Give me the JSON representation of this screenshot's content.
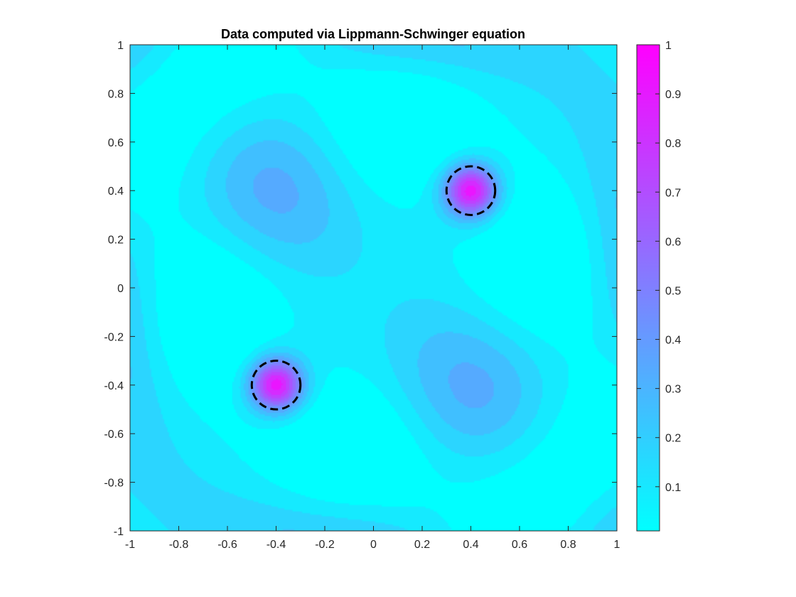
{
  "chart_data": {
    "type": "heatmap",
    "title": "Data computed via Lippmann-Schwinger equation",
    "xlabel": "",
    "ylabel": "",
    "xlim": [
      -1,
      1
    ],
    "ylim": [
      -1,
      1
    ],
    "x_ticks": [
      -1,
      -0.8,
      -0.6,
      -0.4,
      -0.2,
      0,
      0.2,
      0.4,
      0.6,
      0.8,
      1
    ],
    "y_ticks": [
      1,
      0.8,
      0.6,
      0.4,
      0.2,
      0,
      -0.2,
      -0.4,
      -0.6,
      -0.8,
      -1
    ],
    "x_tick_labels": [
      "-1",
      "-0.8",
      "-0.6",
      "-0.4",
      "-0.2",
      "0",
      "0.2",
      "0.4",
      "0.6",
      "0.8",
      "1"
    ],
    "y_tick_labels": [
      "1",
      "0.8",
      "0.6",
      "0.4",
      "0.2",
      "0",
      "-0.2",
      "-0.4",
      "-0.6",
      "-0.8",
      "-1"
    ],
    "colormap": "cool",
    "colormap_low": "#00ffff",
    "colormap_high": "#ff00ff",
    "colorbar": {
      "range": [
        0.01,
        1
      ],
      "ticks": [
        1,
        0.9,
        0.8,
        0.7,
        0.6,
        0.5,
        0.4,
        0.3,
        0.2,
        0.1
      ],
      "tick_labels": [
        "1",
        "0.9",
        "0.8",
        "0.7",
        "0.6",
        "0.5",
        "0.4",
        "0.3",
        "0.2",
        "0.1"
      ]
    },
    "contour_levels": 12,
    "peaks": [
      {
        "x": 0.4,
        "y": 0.4,
        "value": 1.0
      },
      {
        "x": -0.4,
        "y": -0.4,
        "value": 1.0
      }
    ],
    "scatterers": [
      {
        "cx": 0.4,
        "cy": 0.4,
        "r": 0.1,
        "style": "dashed",
        "color": "#000000"
      },
      {
        "cx": -0.4,
        "cy": -0.4,
        "r": 0.1,
        "style": "dashed",
        "color": "#000000"
      }
    ],
    "grid": false
  }
}
